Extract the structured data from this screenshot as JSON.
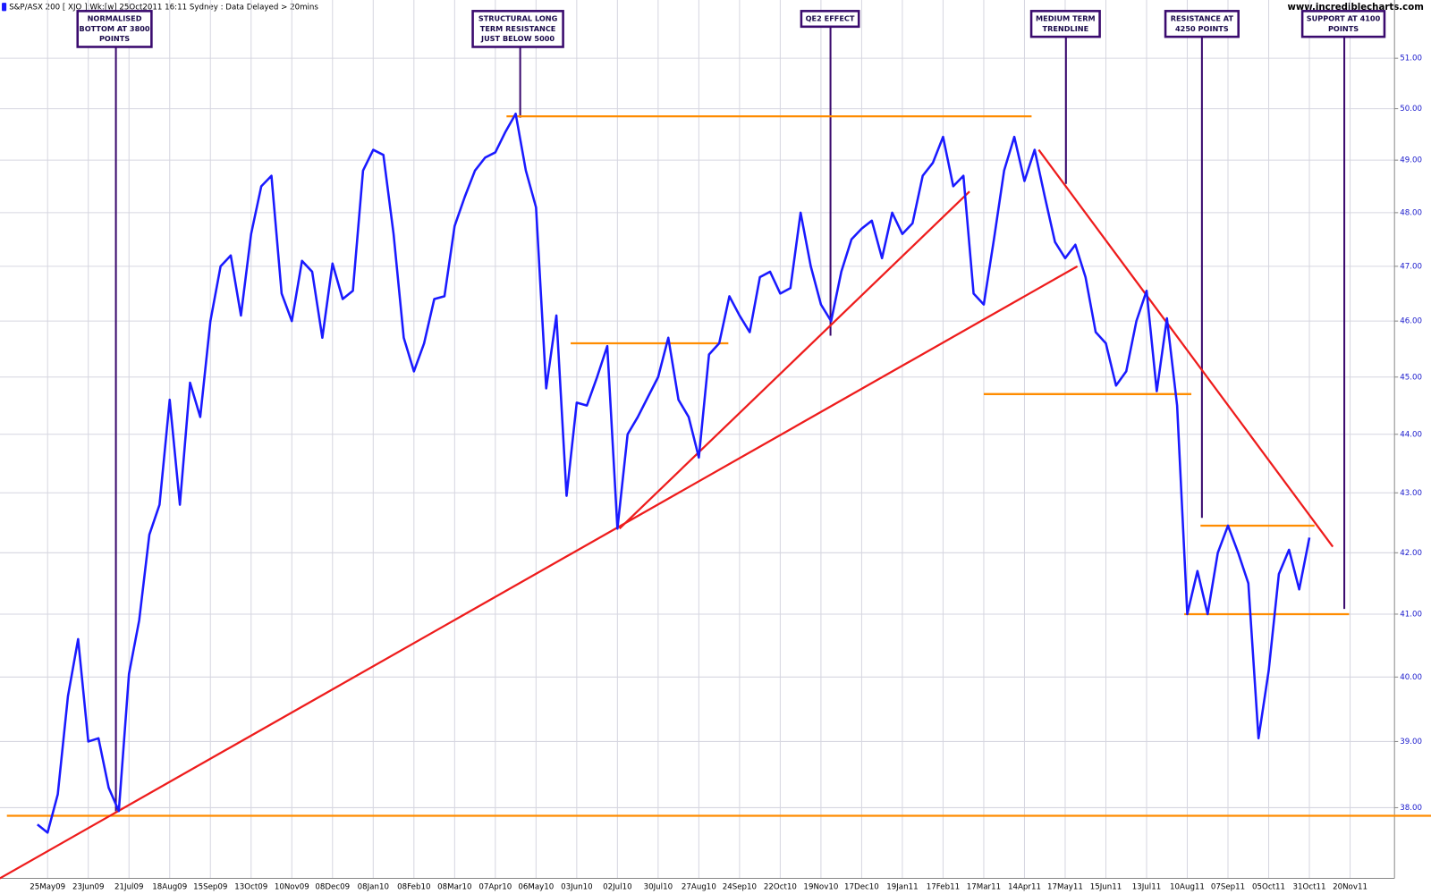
{
  "chart_data": {
    "type": "line",
    "title": "S&P/ASX 200 [ XJO ]:Wk:[w]  25Oct2011 16:11 Sydney : Data Delayed > 20mins",
    "source": "www.incrediblecharts.com",
    "log": true,
    "grid": true,
    "ylim": [
      36.96,
      52.18
    ],
    "yticks": [
      {
        "value": 38,
        "label": "38.00"
      },
      {
        "value": 39,
        "label": "39.00"
      },
      {
        "value": 40,
        "label": "40.00"
      },
      {
        "value": 41,
        "label": "41.00"
      },
      {
        "value": 42,
        "label": "42.00"
      },
      {
        "value": 43,
        "label": "43.00"
      },
      {
        "value": 44,
        "label": "44.00"
      },
      {
        "value": 45,
        "label": "45.00"
      },
      {
        "value": 46,
        "label": "46.00"
      },
      {
        "value": 47,
        "label": "47.00"
      },
      {
        "value": 48,
        "label": "48.00"
      },
      {
        "value": 49,
        "label": "49.00"
      },
      {
        "value": 50,
        "label": "50.00"
      },
      {
        "value": 51,
        "label": "51.00"
      }
    ],
    "categories": [
      null,
      "25May09",
      null,
      null,
      null,
      "23Jun09",
      null,
      null,
      null,
      "21Jul09",
      null,
      null,
      null,
      "18Aug09",
      null,
      null,
      null,
      "15Sep09",
      null,
      null,
      null,
      "13Oct09",
      null,
      null,
      null,
      "10Nov09",
      null,
      null,
      null,
      "08Dec09",
      null,
      null,
      null,
      "08Jan10",
      null,
      null,
      null,
      "08Feb10",
      null,
      null,
      null,
      "08Mar10",
      null,
      null,
      null,
      "07Apr10",
      null,
      null,
      null,
      "06May10",
      null,
      null,
      null,
      "03Jun10",
      null,
      null,
      null,
      "02Jul10",
      null,
      null,
      null,
      "30Jul10",
      null,
      null,
      null,
      "27Aug10",
      null,
      null,
      null,
      "24Sep10",
      null,
      null,
      null,
      "22Oct10",
      null,
      null,
      null,
      "19Nov10",
      null,
      null,
      null,
      "17Dec10",
      null,
      null,
      null,
      "19Jan11",
      null,
      null,
      null,
      "17Feb11",
      null,
      null,
      null,
      "17Mar11",
      null,
      null,
      null,
      "14Apr11",
      null,
      null,
      null,
      "17May11",
      null,
      null,
      null,
      "15Jun11",
      null,
      null,
      null,
      "13Jul11",
      null,
      null,
      null,
      "10Aug11",
      null,
      null,
      null,
      "07Sep11",
      null,
      null,
      null,
      "05Oct11",
      null,
      null,
      null,
      "31Oct11",
      null,
      null,
      null,
      "20Nov11",
      null
    ],
    "series": [
      {
        "name": "XJO",
        "color": "#1a1aff",
        "values": [
          37.75,
          37.63,
          38.2,
          39.7,
          40.6,
          39.0,
          39.05,
          38.3,
          37.95,
          40.05,
          40.9,
          42.3,
          42.8,
          44.6,
          42.8,
          44.9,
          44.3,
          46.0,
          47.0,
          47.2,
          46.1,
          47.6,
          48.5,
          48.7,
          46.5,
          46.0,
          47.1,
          46.9,
          45.7,
          47.05,
          46.4,
          46.55,
          48.8,
          49.2,
          49.1,
          47.6,
          45.7,
          45.1,
          45.6,
          46.4,
          46.45,
          47.75,
          48.3,
          48.8,
          49.05,
          49.15,
          49.55,
          49.9,
          48.8,
          48.1,
          44.8,
          46.1,
          42.95,
          44.55,
          44.5,
          45.0,
          45.55,
          42.4,
          44.0,
          44.3,
          44.65,
          45.0,
          45.7,
          44.6,
          44.3,
          43.6,
          45.4,
          45.6,
          46.45,
          46.1,
          45.8,
          46.8,
          46.9,
          46.5,
          46.6,
          48.0,
          47.0,
          46.3,
          46.0,
          46.9,
          47.5,
          47.7,
          47.85,
          47.15,
          48.0,
          47.6,
          47.8,
          48.7,
          48.95,
          49.45,
          48.5,
          48.7,
          46.5,
          46.3,
          47.5,
          48.8,
          49.45,
          48.6,
          49.2,
          48.3,
          47.45,
          47.15,
          47.4,
          46.8,
          45.8,
          45.6,
          44.85,
          45.1,
          46.0,
          46.55,
          44.75,
          46.05,
          44.5,
          41.0,
          41.7,
          41.0,
          42.0,
          42.45,
          42.0,
          41.5,
          39.05,
          40.1,
          41.65,
          42.05,
          41.4,
          42.25,
          null,
          null,
          null,
          null,
          null
        ]
      }
    ],
    "lines": [
      {
        "color": "#ff8c00",
        "points": [
          [
            -3,
            37.88
          ],
          [
            137,
            37.88
          ]
        ]
      },
      {
        "color": "#ff8c00",
        "points": [
          [
            46.1,
            49.85
          ],
          [
            97.7,
            49.85
          ]
        ]
      },
      {
        "color": "#ff8c00",
        "points": [
          [
            52.4,
            45.6
          ],
          [
            67.9,
            45.6
          ]
        ]
      },
      {
        "color": "#ff8c00",
        "points": [
          [
            93,
            44.7
          ],
          [
            113.4,
            44.7
          ]
        ]
      },
      {
        "color": "#ff8c00",
        "points": [
          [
            114.3,
            42.45
          ],
          [
            125.5,
            42.45
          ]
        ]
      },
      {
        "color": "#ff8c00",
        "points": [
          [
            112.7,
            41.0
          ],
          [
            128.9,
            41.0
          ]
        ]
      },
      {
        "color": "#ee1c1c",
        "points": [
          [
            -3.7,
            36.96
          ],
          [
            102.2,
            47.0
          ]
        ]
      },
      {
        "color": "#ee1c1c",
        "points": [
          [
            57.2,
            42.4
          ],
          [
            91.6,
            48.4
          ]
        ]
      },
      {
        "color": "#ee1c1c",
        "points": [
          [
            98.4,
            49.2
          ],
          [
            127.3,
            42.1
          ]
        ]
      }
    ],
    "annotations": [
      {
        "lines": [
          "NORMALISED",
          "BOTTOM AT 3800",
          "POINTS"
        ]
      },
      {
        "lines": [
          "STRUCTURAL LONG",
          "TERM RESISTANCE",
          "JUST BELOW 5000"
        ]
      },
      {
        "lines": [
          "QE2 EFFECT"
        ]
      },
      {
        "lines": [
          "MEDIUM TERM",
          "TRENDLINE"
        ]
      },
      {
        "lines": [
          "RESISTANCE AT",
          "4250 POINTS"
        ]
      },
      {
        "lines": [
          "SUPPORT AT 4100",
          "POINTS"
        ]
      }
    ]
  }
}
